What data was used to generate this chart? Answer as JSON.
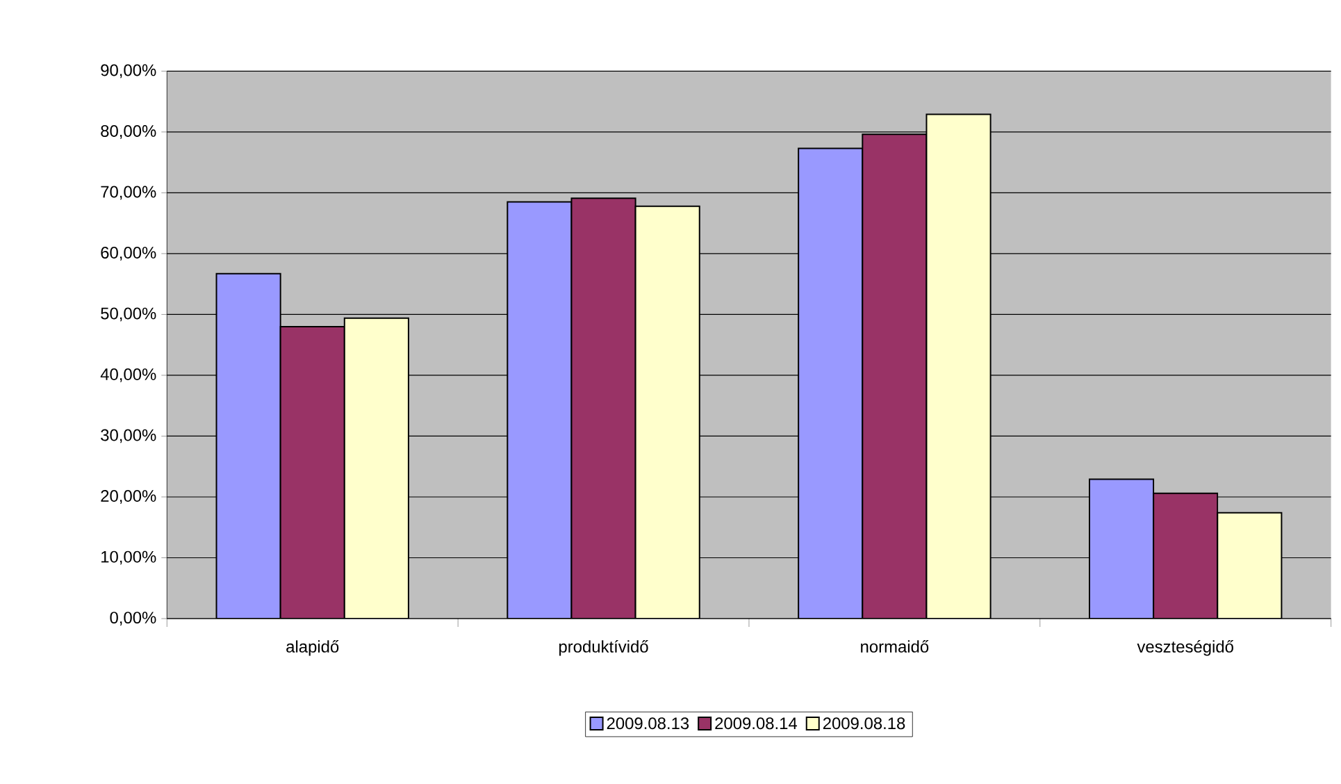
{
  "chart_data": {
    "type": "bar",
    "categories": [
      "alapidő",
      "produktívidő",
      "normaidő",
      "veszteségidő"
    ],
    "series": [
      {
        "name": "2009.08.13",
        "color": "#9999ff",
        "values": [
          56.7,
          68.5,
          77.3,
          22.9
        ]
      },
      {
        "name": "2009.08.14",
        "color": "#993366",
        "values": [
          48.0,
          69.1,
          79.6,
          20.6
        ]
      },
      {
        "name": "2009.08.18",
        "color": "#ffffcc",
        "values": [
          49.4,
          67.8,
          82.9,
          17.4
        ]
      }
    ],
    "ylim": [
      0,
      90
    ],
    "yticks": [
      {
        "value": 0,
        "label": "0,00%"
      },
      {
        "value": 10,
        "label": "10,00%"
      },
      {
        "value": 20,
        "label": "20,00%"
      },
      {
        "value": 30,
        "label": "30,00%"
      },
      {
        "value": 40,
        "label": "40,00%"
      },
      {
        "value": 50,
        "label": "50,00%"
      },
      {
        "value": 60,
        "label": "60,00%"
      },
      {
        "value": 70,
        "label": "70,00%"
      },
      {
        "value": 80,
        "label": "80,00%"
      },
      {
        "value": 90,
        "label": "90,00%"
      }
    ],
    "grid": "y",
    "legend": "bottom"
  }
}
